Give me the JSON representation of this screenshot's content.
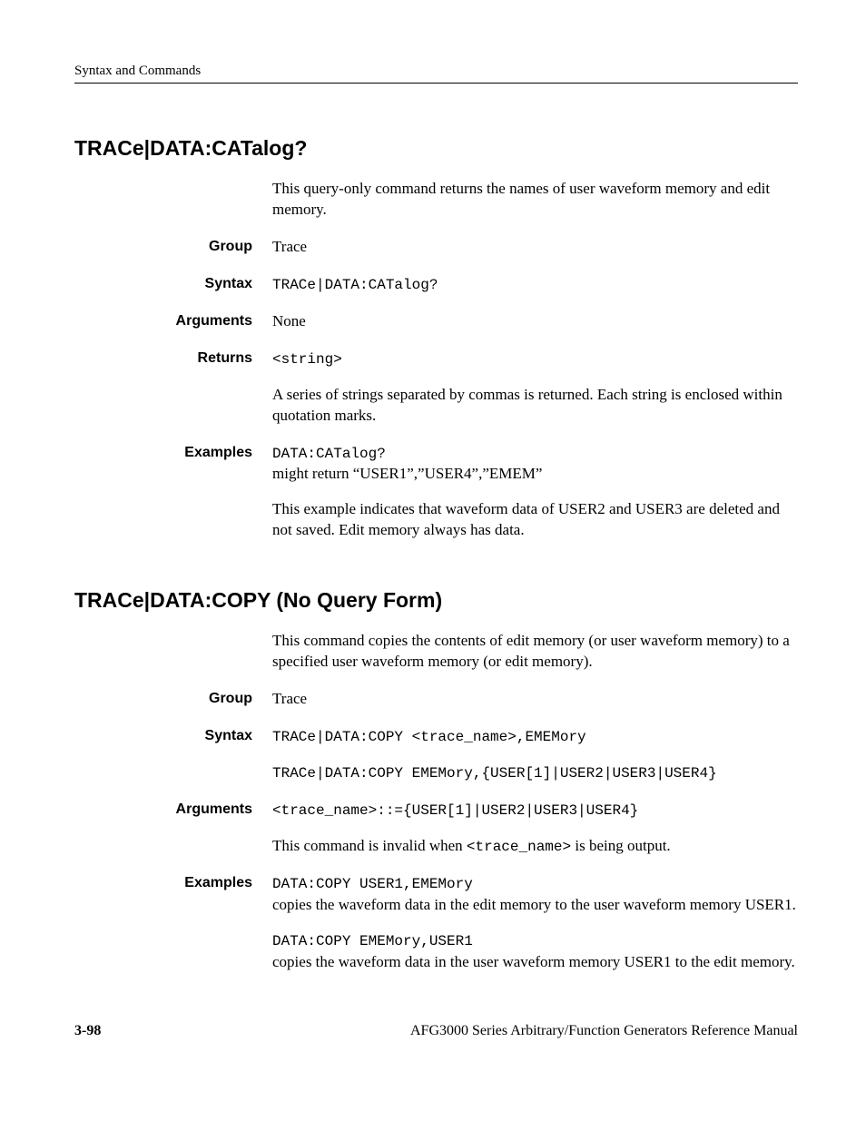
{
  "header": {
    "chapter_label": "Syntax and Commands"
  },
  "sections": {
    "s1": {
      "title": "TRACe|DATA:CATalog?",
      "intro": "This query-only command returns the names of user waveform memory and edit memory.",
      "group_label": "Group",
      "group_value": "Trace",
      "syntax_label": "Syntax",
      "syntax_value": "TRACe|DATA:CATalog?",
      "arguments_label": "Arguments",
      "arguments_value": "None",
      "returns_label": "Returns",
      "returns_code": "<string>",
      "returns_desc": "A series of strings separated by commas is returned. Each string is enclosed within quotation marks.",
      "examples_label": "Examples",
      "example_code": "DATA:CATalog?",
      "example_line2": "might return “USER1”,”USER4”,”EMEM”",
      "example_para2": "This example indicates that waveform data of USER2 and USER3 are deleted and not saved. Edit memory always has data."
    },
    "s2": {
      "title": "TRACe|DATA:COPY (No Query Form)",
      "intro": "This command copies the contents of edit memory (or user waveform memory) to a specified user waveform memory (or edit memory).",
      "group_label": "Group",
      "group_value": "Trace",
      "syntax_label": "Syntax",
      "syntax_line1": "TRACe|DATA:COPY <trace_name>,EMEMory",
      "syntax_line2": "TRACe|DATA:COPY EMEMory,{USER[1]|USER2|USER3|USER4}",
      "arguments_label": "Arguments",
      "arguments_code": "<trace_name>::={USER[1]|USER2|USER3|USER4}",
      "arguments_desc_pre": "This command is invalid when ",
      "arguments_desc_code": "<trace_name>",
      "arguments_desc_post": " is being output.",
      "examples_label": "Examples",
      "example1_code": "DATA:COPY USER1,EMEMory",
      "example1_desc": "copies the waveform data in the edit memory to the user waveform memory USER1.",
      "example2_code": "DATA:COPY EMEMory,USER1",
      "example2_desc": "copies the waveform data in the user waveform memory USER1 to the edit memory."
    }
  },
  "footer": {
    "page_number": "3-98",
    "manual_title": "AFG3000 Series Arbitrary/Function Generators Reference Manual"
  }
}
